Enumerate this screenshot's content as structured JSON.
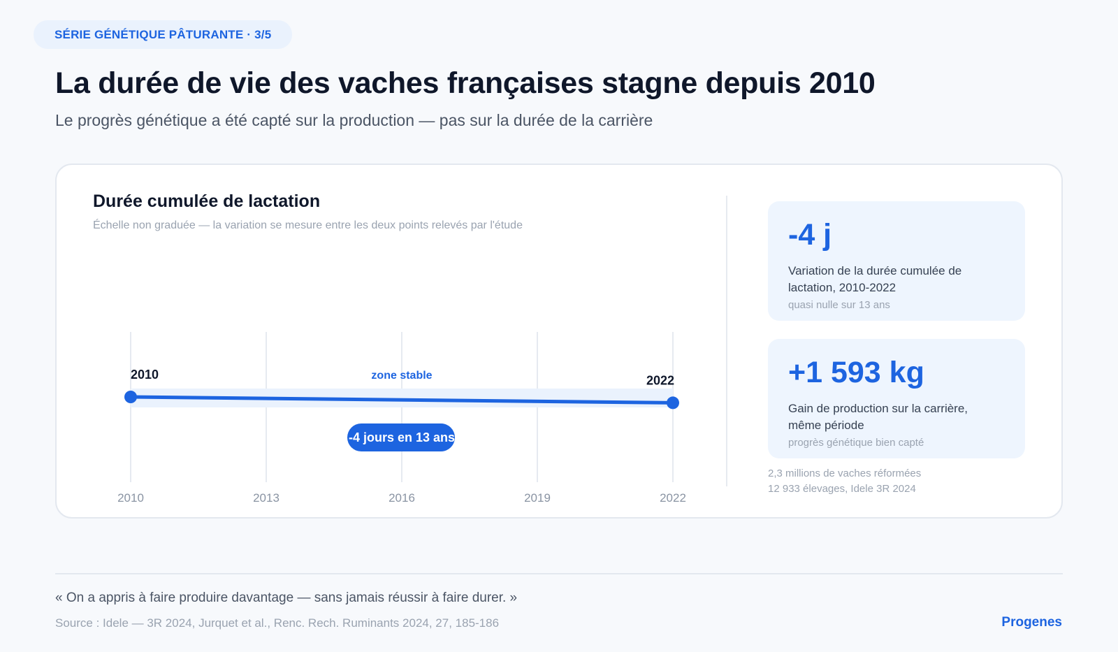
{
  "header": {
    "badge": "SÉRIE GÉNÉTIQUE PÂTURANTE · 3/5",
    "title": "La durée de vie des vaches françaises stagne depuis 2010",
    "subtitle": "Le progrès génétique a été capté sur la production — pas sur la durée de la carrière"
  },
  "colors": {
    "accent": "#1d64e0",
    "band": "#eaf2fd",
    "grid": "#e6eaf0",
    "tick": "#8a94a3"
  },
  "chart_data": {
    "type": "line",
    "title": "Durée cumulée de lactation",
    "subtitle": "Échelle non graduée — la variation se mesure entre les deux points relevés par l'étude",
    "x_ticks": [
      2010,
      2013,
      2016,
      2019,
      2022
    ],
    "xlim": [
      2010,
      2022
    ],
    "series": [
      {
        "points": [
          {
            "x": 2010,
            "y": 0,
            "label": "2010"
          },
          {
            "x": 2022,
            "y": -4,
            "label": "2022"
          }
        ]
      }
    ],
    "ylim": [
      -50,
      50
    ],
    "grid": "vertical",
    "annotations": {
      "band_label": "zone stable",
      "pill_label": "-4 jours en 13 ans"
    }
  },
  "kpis": [
    {
      "value": "-4 j",
      "desc": "Variation de la durée cumulée de lactation, 2010-2022",
      "note": "quasi nulle sur 13 ans"
    },
    {
      "value": "+1 593 kg",
      "desc": "Gain de production sur la carrière, même période",
      "note": "progrès génétique bien capté"
    }
  ],
  "kpi_footnote": {
    "line1": "2,3 millions de vaches réformées",
    "line2": "12 933 élevages, Idele 3R 2024"
  },
  "footer": {
    "quote": "« On a appris à faire produire davantage — sans jamais réussir à faire durer. »",
    "source": "Source : Idele — 3R 2024, Jurquet et al., Renc. Rech. Ruminants 2024, 27, 185-186",
    "brand": "Progenes"
  }
}
